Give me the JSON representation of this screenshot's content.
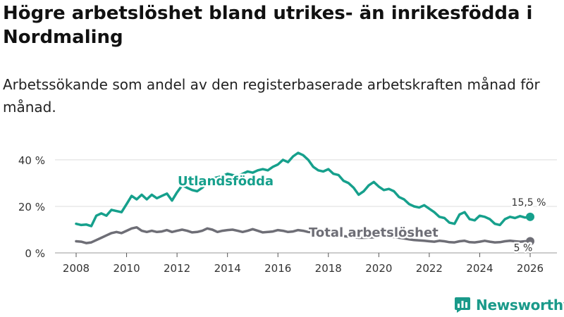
{
  "title": "Högre arbetslöshet bland utrikes- än inrikesfödda i Nordmaling",
  "subtitle": "Arbetssökande som andel av den registerbaserade arbetskraften månad för månad.",
  "brand": {
    "name": "Newsworthy",
    "icon": "newsworthy-logo-icon"
  },
  "colors": {
    "foreign": "#16a08c",
    "total": "#6e6e76",
    "grid": "#dddddd",
    "axis": "#555555"
  },
  "chart_data": {
    "type": "line",
    "title": "Högre arbetslöshet bland utrikes- än inrikesfödda i Nordmaling",
    "xlabel": "",
    "ylabel": "",
    "xlim": [
      2007.8,
      2026.2
    ],
    "ylim": [
      0,
      43
    ],
    "x_ticks": [
      2008,
      2010,
      2012,
      2014,
      2016,
      2018,
      2020,
      2022,
      2024,
      2026
    ],
    "x_tick_labels": [
      "2008",
      "2010",
      "2012",
      "2014",
      "2016",
      "2018",
      "2020",
      "2022",
      "2024",
      "2026"
    ],
    "y_ticks": [
      0,
      20,
      40
    ],
    "y_tick_labels": [
      "0 %",
      "20 %",
      "40 %"
    ],
    "series": [
      {
        "name": "Utlandsfödda",
        "color": "#16a08c",
        "end_label": "15,5 %",
        "points": [
          [
            2008.0,
            12.5
          ],
          [
            2008.2,
            12.0
          ],
          [
            2008.4,
            12.2
          ],
          [
            2008.6,
            11.5
          ],
          [
            2008.8,
            16.0
          ],
          [
            2009.0,
            17.0
          ],
          [
            2009.2,
            16.0
          ],
          [
            2009.4,
            18.5
          ],
          [
            2009.6,
            18.0
          ],
          [
            2009.8,
            17.5
          ],
          [
            2010.0,
            21.0
          ],
          [
            2010.2,
            24.5
          ],
          [
            2010.4,
            23.0
          ],
          [
            2010.6,
            25.0
          ],
          [
            2010.8,
            23.0
          ],
          [
            2011.0,
            25.0
          ],
          [
            2011.2,
            23.5
          ],
          [
            2011.4,
            24.5
          ],
          [
            2011.6,
            25.5
          ],
          [
            2011.8,
            22.5
          ],
          [
            2012.0,
            26.0
          ],
          [
            2012.2,
            29.0
          ],
          [
            2012.4,
            28.0
          ],
          [
            2012.6,
            27.0
          ],
          [
            2012.8,
            26.5
          ],
          [
            2013.0,
            28.0
          ],
          [
            2013.2,
            30.0
          ],
          [
            2013.4,
            32.0
          ],
          [
            2013.6,
            32.5
          ],
          [
            2013.8,
            33.0
          ],
          [
            2014.0,
            34.0
          ],
          [
            2014.2,
            33.5
          ],
          [
            2014.4,
            33.0
          ],
          [
            2014.6,
            34.0
          ],
          [
            2014.8,
            35.0
          ],
          [
            2015.0,
            34.5
          ],
          [
            2015.2,
            35.5
          ],
          [
            2015.4,
            36.0
          ],
          [
            2015.6,
            35.5
          ],
          [
            2015.8,
            37.0
          ],
          [
            2016.0,
            38.0
          ],
          [
            2016.2,
            40.0
          ],
          [
            2016.4,
            39.0
          ],
          [
            2016.6,
            41.5
          ],
          [
            2016.8,
            43.0
          ],
          [
            2017.0,
            42.0
          ],
          [
            2017.2,
            40.0
          ],
          [
            2017.4,
            37.0
          ],
          [
            2017.6,
            35.5
          ],
          [
            2017.8,
            35.0
          ],
          [
            2018.0,
            36.0
          ],
          [
            2018.2,
            34.0
          ],
          [
            2018.4,
            33.5
          ],
          [
            2018.6,
            31.0
          ],
          [
            2018.8,
            30.0
          ],
          [
            2019.0,
            28.0
          ],
          [
            2019.2,
            25.0
          ],
          [
            2019.4,
            26.5
          ],
          [
            2019.6,
            29.0
          ],
          [
            2019.8,
            30.5
          ],
          [
            2020.0,
            28.5
          ],
          [
            2020.2,
            27.0
          ],
          [
            2020.4,
            27.5
          ],
          [
            2020.6,
            26.5
          ],
          [
            2020.8,
            24.0
          ],
          [
            2021.0,
            23.0
          ],
          [
            2021.2,
            21.0
          ],
          [
            2021.4,
            20.0
          ],
          [
            2021.6,
            19.5
          ],
          [
            2021.8,
            20.5
          ],
          [
            2022.0,
            19.0
          ],
          [
            2022.2,
            17.5
          ],
          [
            2022.4,
            15.5
          ],
          [
            2022.6,
            15.0
          ],
          [
            2022.8,
            13.0
          ],
          [
            2023.0,
            12.5
          ],
          [
            2023.2,
            16.5
          ],
          [
            2023.4,
            17.5
          ],
          [
            2023.6,
            14.5
          ],
          [
            2023.8,
            14.0
          ],
          [
            2024.0,
            16.0
          ],
          [
            2024.2,
            15.5
          ],
          [
            2024.4,
            14.5
          ],
          [
            2024.6,
            12.5
          ],
          [
            2024.8,
            12.0
          ],
          [
            2025.0,
            14.5
          ],
          [
            2025.2,
            15.5
          ],
          [
            2025.4,
            15.0
          ],
          [
            2025.6,
            15.8
          ],
          [
            2025.8,
            15.2
          ],
          [
            2026.0,
            15.5
          ]
        ]
      },
      {
        "name": "Total arbetslöshet",
        "color": "#6e6e76",
        "end_label": "5 %",
        "points": [
          [
            2008.0,
            5.0
          ],
          [
            2008.2,
            4.8
          ],
          [
            2008.4,
            4.2
          ],
          [
            2008.6,
            4.5
          ],
          [
            2008.8,
            5.5
          ],
          [
            2009.0,
            6.5
          ],
          [
            2009.2,
            7.5
          ],
          [
            2009.4,
            8.5
          ],
          [
            2009.6,
            9.0
          ],
          [
            2009.8,
            8.5
          ],
          [
            2010.0,
            9.5
          ],
          [
            2010.2,
            10.5
          ],
          [
            2010.4,
            11.0
          ],
          [
            2010.6,
            9.5
          ],
          [
            2010.8,
            9.0
          ],
          [
            2011.0,
            9.5
          ],
          [
            2011.2,
            9.0
          ],
          [
            2011.4,
            9.2
          ],
          [
            2011.6,
            9.8
          ],
          [
            2011.8,
            9.0
          ],
          [
            2012.0,
            9.5
          ],
          [
            2012.2,
            10.0
          ],
          [
            2012.4,
            9.5
          ],
          [
            2012.6,
            8.8
          ],
          [
            2012.8,
            9.0
          ],
          [
            2013.0,
            9.5
          ],
          [
            2013.2,
            10.5
          ],
          [
            2013.4,
            10.0
          ],
          [
            2013.6,
            9.0
          ],
          [
            2013.8,
            9.5
          ],
          [
            2014.0,
            9.8
          ],
          [
            2014.2,
            10.0
          ],
          [
            2014.4,
            9.5
          ],
          [
            2014.6,
            9.0
          ],
          [
            2014.8,
            9.5
          ],
          [
            2015.0,
            10.2
          ],
          [
            2015.2,
            9.5
          ],
          [
            2015.4,
            8.8
          ],
          [
            2015.6,
            9.0
          ],
          [
            2015.8,
            9.2
          ],
          [
            2016.0,
            9.8
          ],
          [
            2016.2,
            9.5
          ],
          [
            2016.4,
            9.0
          ],
          [
            2016.6,
            9.2
          ],
          [
            2016.8,
            9.8
          ],
          [
            2017.0,
            9.5
          ],
          [
            2017.2,
            9.0
          ],
          [
            2017.4,
            8.8
          ],
          [
            2017.6,
            8.5
          ],
          [
            2017.8,
            8.2
          ],
          [
            2018.0,
            8.0
          ],
          [
            2018.2,
            7.8
          ],
          [
            2018.4,
            7.5
          ],
          [
            2018.6,
            7.2
          ],
          [
            2018.8,
            7.0
          ],
          [
            2019.0,
            6.8
          ],
          [
            2019.2,
            6.5
          ],
          [
            2019.4,
            6.5
          ],
          [
            2019.6,
            6.6
          ],
          [
            2019.8,
            6.7
          ],
          [
            2020.0,
            7.0
          ],
          [
            2020.2,
            7.2
          ],
          [
            2020.4,
            7.0
          ],
          [
            2020.6,
            6.8
          ],
          [
            2020.8,
            6.5
          ],
          [
            2021.0,
            6.2
          ],
          [
            2021.2,
            5.8
          ],
          [
            2021.4,
            5.5
          ],
          [
            2021.6,
            5.4
          ],
          [
            2021.8,
            5.2
          ],
          [
            2022.0,
            5.0
          ],
          [
            2022.2,
            4.8
          ],
          [
            2022.4,
            5.2
          ],
          [
            2022.6,
            5.0
          ],
          [
            2022.8,
            4.6
          ],
          [
            2023.0,
            4.5
          ],
          [
            2023.2,
            5.0
          ],
          [
            2023.4,
            5.2
          ],
          [
            2023.6,
            4.6
          ],
          [
            2023.8,
            4.5
          ],
          [
            2024.0,
            4.8
          ],
          [
            2024.2,
            5.2
          ],
          [
            2024.4,
            4.8
          ],
          [
            2024.6,
            4.5
          ],
          [
            2024.8,
            4.6
          ],
          [
            2025.0,
            5.0
          ],
          [
            2025.2,
            5.2
          ],
          [
            2025.4,
            5.0
          ],
          [
            2025.6,
            4.8
          ],
          [
            2025.8,
            5.0
          ],
          [
            2026.0,
            5.0
          ]
        ]
      }
    ]
  }
}
